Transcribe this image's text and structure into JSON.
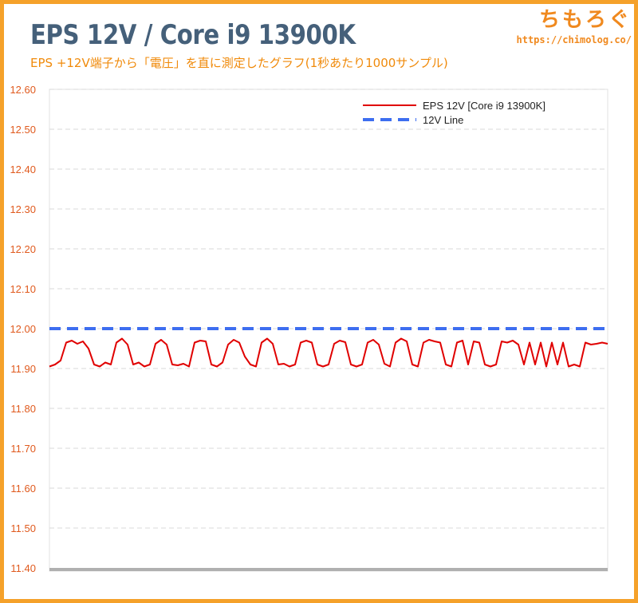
{
  "header": {
    "title": "EPS 12V / Core i9 13900K",
    "subtitle": "EPS +12V端子から「電圧」を直に測定したグラフ(1秒あたり1000サンプル)",
    "brand_name": "ちもろぐ",
    "brand_url": "https://chimolog.co/"
  },
  "colors": {
    "background": "#f5a12a",
    "title": "#45607a",
    "subtitle": "#f08a0a",
    "tick_labels": "#e05a1e",
    "series_main": "#e00000",
    "series_reference": "#3d6ef0",
    "grid": "#d9d9d9",
    "axis": "#b0b0b0"
  },
  "chart_data": {
    "type": "line",
    "title": "EPS 12V / Core i9 13900K",
    "xlabel": "",
    "ylabel": "",
    "ylim": [
      11.4,
      12.6
    ],
    "yticks": [
      "12.60",
      "12.50",
      "12.40",
      "12.30",
      "12.20",
      "12.10",
      "12.00",
      "11.90",
      "11.80",
      "11.70",
      "11.60",
      "11.50",
      "11.40"
    ],
    "grid": true,
    "grid_style": "dashed horizontal",
    "legend_position": "top-right",
    "x_range": [
      0,
      100
    ],
    "series": [
      {
        "name": "EPS 12V [Core i9 13900K]",
        "color": "#e00000",
        "style": "solid",
        "x": [
          0,
          1,
          2,
          3,
          4,
          5,
          6,
          7,
          8,
          9,
          10,
          11,
          12,
          13,
          14,
          15,
          16,
          17,
          18,
          19,
          20,
          21,
          22,
          23,
          24,
          25,
          26,
          27,
          28,
          29,
          30,
          31,
          32,
          33,
          34,
          35,
          36,
          37,
          38,
          39,
          40,
          41,
          42,
          43,
          44,
          45,
          46,
          47,
          48,
          49,
          50,
          51,
          52,
          53,
          54,
          55,
          56,
          57,
          58,
          59,
          60,
          61,
          62,
          63,
          64,
          65,
          66,
          67,
          68,
          69,
          70,
          71,
          72,
          73,
          74,
          75,
          76,
          77,
          78,
          79,
          80,
          81,
          82,
          83,
          84,
          85,
          86,
          87,
          88,
          89,
          90,
          91,
          92,
          93,
          94,
          95,
          96,
          97,
          98,
          99,
          100
        ],
        "values": [
          11.905,
          11.91,
          11.92,
          11.965,
          11.97,
          11.962,
          11.968,
          11.95,
          11.91,
          11.905,
          11.915,
          11.91,
          11.965,
          11.975,
          11.96,
          11.91,
          11.915,
          11.905,
          11.91,
          11.962,
          11.972,
          11.96,
          11.91,
          11.908,
          11.912,
          11.905,
          11.965,
          11.97,
          11.968,
          11.91,
          11.905,
          11.915,
          11.96,
          11.972,
          11.965,
          11.93,
          11.91,
          11.905,
          11.965,
          11.975,
          11.962,
          11.91,
          11.912,
          11.905,
          11.91,
          11.965,
          11.97,
          11.965,
          11.91,
          11.905,
          11.91,
          11.962,
          11.97,
          11.966,
          11.91,
          11.905,
          11.91,
          11.965,
          11.972,
          11.96,
          11.912,
          11.905,
          11.965,
          11.975,
          11.968,
          11.91,
          11.905,
          11.965,
          11.972,
          11.968,
          11.965,
          11.91,
          11.905,
          11.965,
          11.97,
          11.91,
          11.968,
          11.965,
          11.91,
          11.905,
          11.91,
          11.968,
          11.965,
          11.97,
          11.96,
          11.91,
          11.965,
          11.91,
          11.965,
          11.905,
          11.965,
          11.91,
          11.965,
          11.905,
          11.91,
          11.905,
          11.965,
          11.96,
          11.962,
          11.965,
          11.962
        ]
      },
      {
        "name": "12V Line",
        "color": "#3d6ef0",
        "style": "dashed",
        "x": [
          0,
          100
        ],
        "values": [
          12.0,
          12.0
        ]
      }
    ]
  }
}
